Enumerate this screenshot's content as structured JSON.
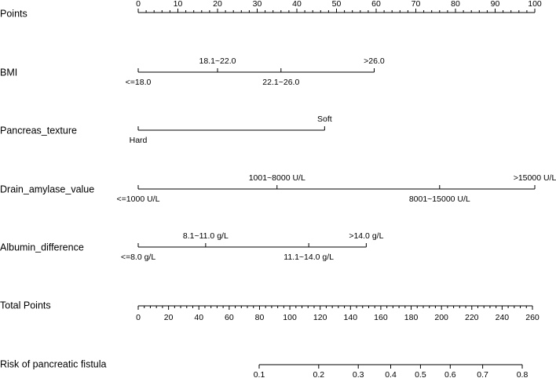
{
  "chart_data": {
    "type": "nomogram",
    "points_axis": {
      "label": "Points",
      "xlim": [
        0,
        100
      ],
      "xticks": [
        0,
        10,
        20,
        30,
        40,
        50,
        60,
        70,
        80,
        90,
        100
      ],
      "minor_xticks": [
        2,
        4,
        6,
        8,
        12,
        14,
        16,
        18,
        22,
        24,
        26,
        28,
        32,
        34,
        36,
        38,
        42,
        44,
        46,
        48,
        52,
        54,
        56,
        58,
        62,
        64,
        66,
        68,
        72,
        74,
        76,
        78,
        82,
        84,
        86,
        88,
        92,
        94,
        96,
        98
      ]
    },
    "variables": [
      {
        "name": "BMI",
        "levels": [
          {
            "label": "<=18.0",
            "points": 0
          },
          {
            "label": "18.1~22.0",
            "points": 20
          },
          {
            "label": "22.1~26.0",
            "points": 36
          },
          {
            "label": ">26.0",
            "points": 59.5
          }
        ]
      },
      {
        "name": "Pancreas_texture",
        "levels": [
          {
            "label": "Hard",
            "points": 0
          },
          {
            "label": "Soft",
            "points": 47
          }
        ]
      },
      {
        "name": "Drain_amylase_value",
        "levels": [
          {
            "label": "<=1000 U/L",
            "points": 0
          },
          {
            "label": "1001~8000 U/L",
            "points": 35
          },
          {
            "label": "8001~15000 U/L",
            "points": 76
          },
          {
            "label": ">15000 U/L",
            "points": 100
          }
        ]
      },
      {
        "name": "Albumin_difference",
        "levels": [
          {
            "label": "<=8.0 g/L",
            "points": 0
          },
          {
            "label": "8.1~11.0 g/L",
            "points": 17
          },
          {
            "label": "11.1~14.0 g/L",
            "points": 43
          },
          {
            "label": ">14.0 g/L",
            "points": 57.5
          }
        ]
      }
    ],
    "total_points_axis": {
      "label": "Total Points",
      "xlim": [
        0,
        260
      ],
      "xticks": [
        0,
        20,
        40,
        60,
        80,
        100,
        120,
        140,
        160,
        180,
        200,
        220,
        240,
        260
      ],
      "minor_xticks": [
        4,
        8,
        12,
        16,
        24,
        28,
        32,
        36,
        44,
        48,
        52,
        56,
        64,
        68,
        72,
        76,
        84,
        88,
        92,
        96,
        104,
        108,
        112,
        116,
        124,
        128,
        132,
        136,
        144,
        148,
        152,
        156,
        164,
        168,
        172,
        176,
        184,
        188,
        192,
        196,
        204,
        208,
        212,
        216,
        224,
        228,
        232,
        236,
        244,
        248,
        252,
        256
      ]
    },
    "risk_axis": {
      "label": "Risk of pancreatic fistula",
      "scale": "logit",
      "xlim": [
        0.1,
        0.8
      ],
      "xticks": [
        0.1,
        0.2,
        0.3,
        0.4,
        0.5,
        0.6,
        0.7,
        0.8
      ]
    }
  }
}
